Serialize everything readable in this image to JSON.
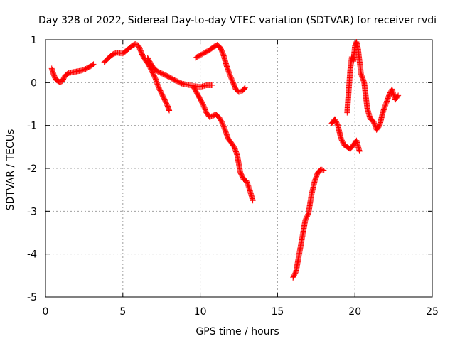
{
  "chart_data": {
    "type": "scatter",
    "title": "Day 328 of 2022, Sidereal Day-to-day VTEC variation (SDTVAR) for receiver rvdi",
    "xlabel": "GPS time / hours",
    "ylabel": "SDTVAR / TECUs",
    "xlim": [
      0,
      25
    ],
    "ylim": [
      -5,
      1
    ],
    "xticks": [
      "0",
      "5",
      "10",
      "15",
      "20",
      "25"
    ],
    "yticks": [
      "1",
      "0",
      "-1",
      "-2",
      "-3",
      "-4",
      "-5"
    ],
    "grid": true,
    "marker": "plus",
    "color": "#ff0000",
    "series": [
      {
        "x": [
          0.4,
          0.5,
          0.6,
          0.7,
          0.8,
          0.9,
          1.0,
          1.1,
          1.2,
          1.3,
          1.5,
          1.7,
          2.0,
          2.3,
          2.6,
          2.9,
          3.1
        ],
        "y": [
          0.33,
          0.22,
          0.12,
          0.06,
          0.04,
          0.02,
          0.02,
          0.04,
          0.12,
          0.18,
          0.22,
          0.24,
          0.26,
          0.28,
          0.32,
          0.38,
          0.43
        ]
      },
      {
        "x": [
          3.8,
          4.0,
          4.2,
          4.4,
          4.6,
          4.8,
          5.0,
          5.2,
          5.4,
          5.6,
          5.8,
          6.0,
          6.1
        ],
        "y": [
          0.48,
          0.55,
          0.62,
          0.67,
          0.7,
          0.69,
          0.68,
          0.74,
          0.8,
          0.86,
          0.9,
          0.87,
          0.8
        ]
      },
      {
        "x": [
          6.1,
          6.3,
          6.5,
          6.7,
          6.9,
          7.1,
          7.3,
          7.5,
          7.7,
          7.9,
          8.0
        ],
        "y": [
          0.78,
          0.62,
          0.5,
          0.4,
          0.25,
          0.1,
          -0.1,
          -0.25,
          -0.4,
          -0.55,
          -0.65
        ]
      },
      {
        "x": [
          6.6,
          6.8,
          7.0,
          7.3,
          7.6,
          8.0,
          8.4,
          8.8,
          9.2,
          9.6,
          10.0,
          10.4,
          10.8
        ],
        "y": [
          0.58,
          0.45,
          0.33,
          0.25,
          0.2,
          0.13,
          0.05,
          -0.02,
          -0.05,
          -0.08,
          -0.1,
          -0.06,
          -0.06
        ]
      },
      {
        "x": [
          9.6,
          9.9,
          10.2,
          10.4,
          10.6,
          10.8,
          11.0,
          11.2,
          11.4,
          11.6,
          11.8,
          12.0,
          12.2,
          12.4,
          12.6,
          12.8,
          13.0,
          13.2,
          13.4
        ],
        "y": [
          -0.12,
          -0.32,
          -0.52,
          -0.7,
          -0.8,
          -0.78,
          -0.74,
          -0.8,
          -0.92,
          -1.1,
          -1.3,
          -1.4,
          -1.5,
          -1.7,
          -2.1,
          -2.25,
          -2.3,
          -2.5,
          -2.75
        ]
      },
      {
        "x": [
          9.7,
          10.0,
          10.3,
          10.6,
          10.9,
          11.1,
          11.3,
          11.5,
          11.7,
          11.9,
          12.1,
          12.3,
          12.5,
          12.7,
          12.9
        ],
        "y": [
          0.58,
          0.64,
          0.7,
          0.76,
          0.84,
          0.88,
          0.82,
          0.65,
          0.4,
          0.2,
          0.02,
          -0.15,
          -0.22,
          -0.2,
          -0.12
        ]
      },
      {
        "x": [
          16.0,
          16.2,
          16.4,
          16.6,
          16.8,
          17.0,
          17.2,
          17.4,
          17.6,
          17.8,
          18.0
        ],
        "y": [
          -4.55,
          -4.4,
          -4.0,
          -3.6,
          -3.2,
          -3.05,
          -2.6,
          -2.3,
          -2.1,
          -2.02,
          -2.05
        ]
      },
      {
        "x": [
          18.5,
          18.7,
          18.9,
          19.1,
          19.3,
          19.5,
          19.7,
          19.9,
          20.1,
          20.3
        ],
        "y": [
          -0.95,
          -0.85,
          -1.0,
          -1.3,
          -1.45,
          -1.5,
          -1.55,
          -1.45,
          -1.35,
          -1.6
        ]
      },
      {
        "x": [
          19.5,
          19.7,
          19.8,
          19.9,
          20.0,
          20.1,
          20.2,
          20.4,
          20.6,
          20.8,
          21.0,
          21.2,
          21.4,
          21.6,
          21.8,
          22.0,
          22.2,
          22.4,
          22.6,
          22.8
        ],
        "y": [
          -0.7,
          0.3,
          0.6,
          0.5,
          0.85,
          0.95,
          0.8,
          0.2,
          0.0,
          -0.6,
          -0.85,
          -0.9,
          -1.1,
          -1.0,
          -0.7,
          -0.5,
          -0.3,
          -0.15,
          -0.4,
          -0.3
        ]
      }
    ]
  }
}
